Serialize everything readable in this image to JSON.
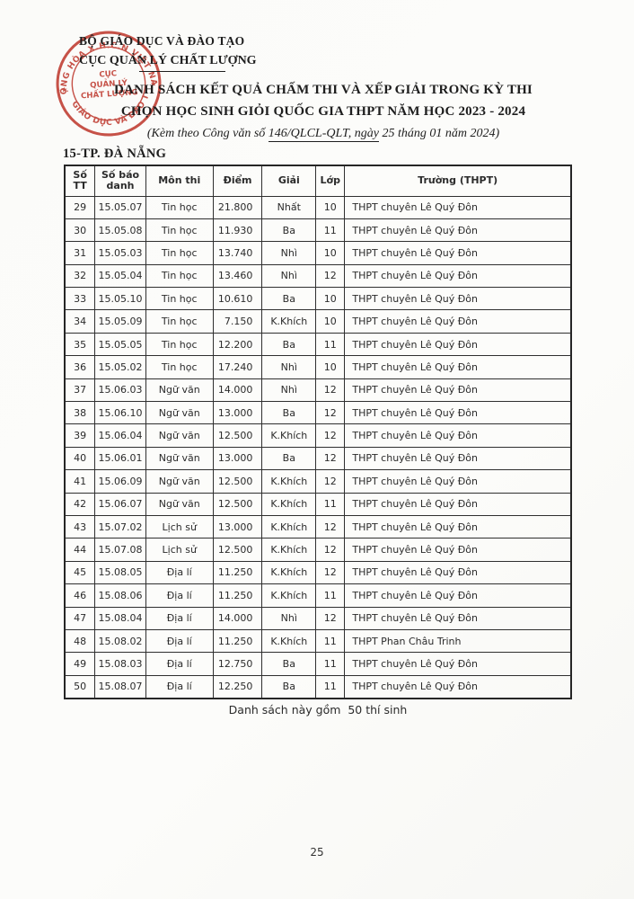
{
  "document": {
    "org_line1": "BỘ GIÁO DỤC VÀ ĐÀO TẠO",
    "org_line2": "CỤC QUẢN LÝ CHẤT LƯỢNG",
    "title_line1": "DANH SÁCH KẾT QUẢ CHẤM THI VÀ XẾP GIẢI TRONG KỲ THI",
    "title_line2": "CHỌN HỌC SINH GIỎI QUỐC GIA THPT NĂM HỌC 2023 - 2024",
    "subtitle_prefix": "(Kèm theo Công văn số ",
    "subtitle_underlined": "146/QLCL-QLT, ngày",
    "subtitle_suffix": " 25 tháng 01 năm 2024)",
    "section_label": "15-TP. ĐÀ NẴNG",
    "footer_note": "Danh sách này gồm  50 thí sinh",
    "page_number": "25"
  },
  "stamp": {
    "top_arc_text": "CỘNG HÒA X.H.C.N VIỆT NAM",
    "bottom_arc_text": "BỘ GIÁO DỤC VÀ ĐÀO TẠO",
    "center_line1": "CỤC",
    "center_line2": "QUẢN LÝ",
    "center_line3": "CHẤT LƯỢNG",
    "star_glyph": "★",
    "color": "#c23b31"
  },
  "table": {
    "headers": [
      "Số TT",
      "Số báo danh",
      "Môn thi",
      "Điểm",
      "Giải",
      "Lớp",
      "Trường (THPT)"
    ],
    "col_widths_pct": [
      6.0,
      10.0,
      13.3,
      9.7,
      10.6,
      5.7,
      44.7
    ],
    "rows": [
      [
        "29",
        "15.05.07",
        "Tin học",
        "21.800",
        "Nhất",
        "10",
        "THPT chuyên Lê Quý Đôn"
      ],
      [
        "30",
        "15.05.08",
        "Tin học",
        "11.930",
        "Ba",
        "11",
        "THPT chuyên Lê Quý Đôn"
      ],
      [
        "31",
        "15.05.03",
        "Tin học",
        "13.740",
        "Nhì",
        "10",
        "THPT chuyên Lê Quý Đôn"
      ],
      [
        "32",
        "15.05.04",
        "Tin học",
        "13.460",
        "Nhì",
        "12",
        "THPT chuyên Lê Quý Đôn"
      ],
      [
        "33",
        "15.05.10",
        "Tin học",
        "10.610",
        "Ba",
        "10",
        "THPT chuyên Lê Quý Đôn"
      ],
      [
        "34",
        "15.05.09",
        "Tin học",
        "7.150",
        "K.Khích",
        "10",
        "THPT chuyên Lê Quý Đôn"
      ],
      [
        "35",
        "15.05.05",
        "Tin học",
        "12.200",
        "Ba",
        "11",
        "THPT chuyên Lê Quý Đôn"
      ],
      [
        "36",
        "15.05.02",
        "Tin học",
        "17.240",
        "Nhì",
        "10",
        "THPT chuyên Lê Quý Đôn"
      ],
      [
        "37",
        "15.06.03",
        "Ngữ văn",
        "14.000",
        "Nhì",
        "12",
        "THPT chuyên Lê Quý Đôn"
      ],
      [
        "38",
        "15.06.10",
        "Ngữ văn",
        "13.000",
        "Ba",
        "12",
        "THPT chuyên Lê Quý Đôn"
      ],
      [
        "39",
        "15.06.04",
        "Ngữ văn",
        "12.500",
        "K.Khích",
        "12",
        "THPT chuyên Lê Quý Đôn"
      ],
      [
        "40",
        "15.06.01",
        "Ngữ văn",
        "13.000",
        "Ba",
        "12",
        "THPT chuyên Lê Quý Đôn"
      ],
      [
        "41",
        "15.06.09",
        "Ngữ văn",
        "12.500",
        "K.Khích",
        "12",
        "THPT chuyên Lê Quý Đôn"
      ],
      [
        "42",
        "15.06.07",
        "Ngữ văn",
        "12.500",
        "K.Khích",
        "11",
        "THPT chuyên Lê Quý Đôn"
      ],
      [
        "43",
        "15.07.02",
        "Lịch sử",
        "13.000",
        "K.Khích",
        "12",
        "THPT chuyên Lê Quý Đôn"
      ],
      [
        "44",
        "15.07.08",
        "Lịch sử",
        "12.500",
        "K.Khích",
        "12",
        "THPT chuyên Lê Quý Đôn"
      ],
      [
        "45",
        "15.08.05",
        "Địa lí",
        "11.250",
        "K.Khích",
        "12",
        "THPT chuyên Lê Quý Đôn"
      ],
      [
        "46",
        "15.08.06",
        "Địa lí",
        "11.250",
        "K.Khích",
        "11",
        "THPT chuyên Lê Quý Đôn"
      ],
      [
        "47",
        "15.08.04",
        "Địa lí",
        "14.000",
        "Nhì",
        "12",
        "THPT chuyên Lê Quý Đôn"
      ],
      [
        "48",
        "15.08.02",
        "Địa lí",
        "11.250",
        "K.Khích",
        "11",
        "THPT Phan Châu Trinh"
      ],
      [
        "49",
        "15.08.03",
        "Địa lí",
        "12.750",
        "Ba",
        "11",
        "THPT chuyên Lê Quý Đôn"
      ],
      [
        "50",
        "15.08.07",
        "Địa lí",
        "12.250",
        "Ba",
        "11",
        "THPT chuyên Lê Quý Đôn"
      ]
    ]
  }
}
